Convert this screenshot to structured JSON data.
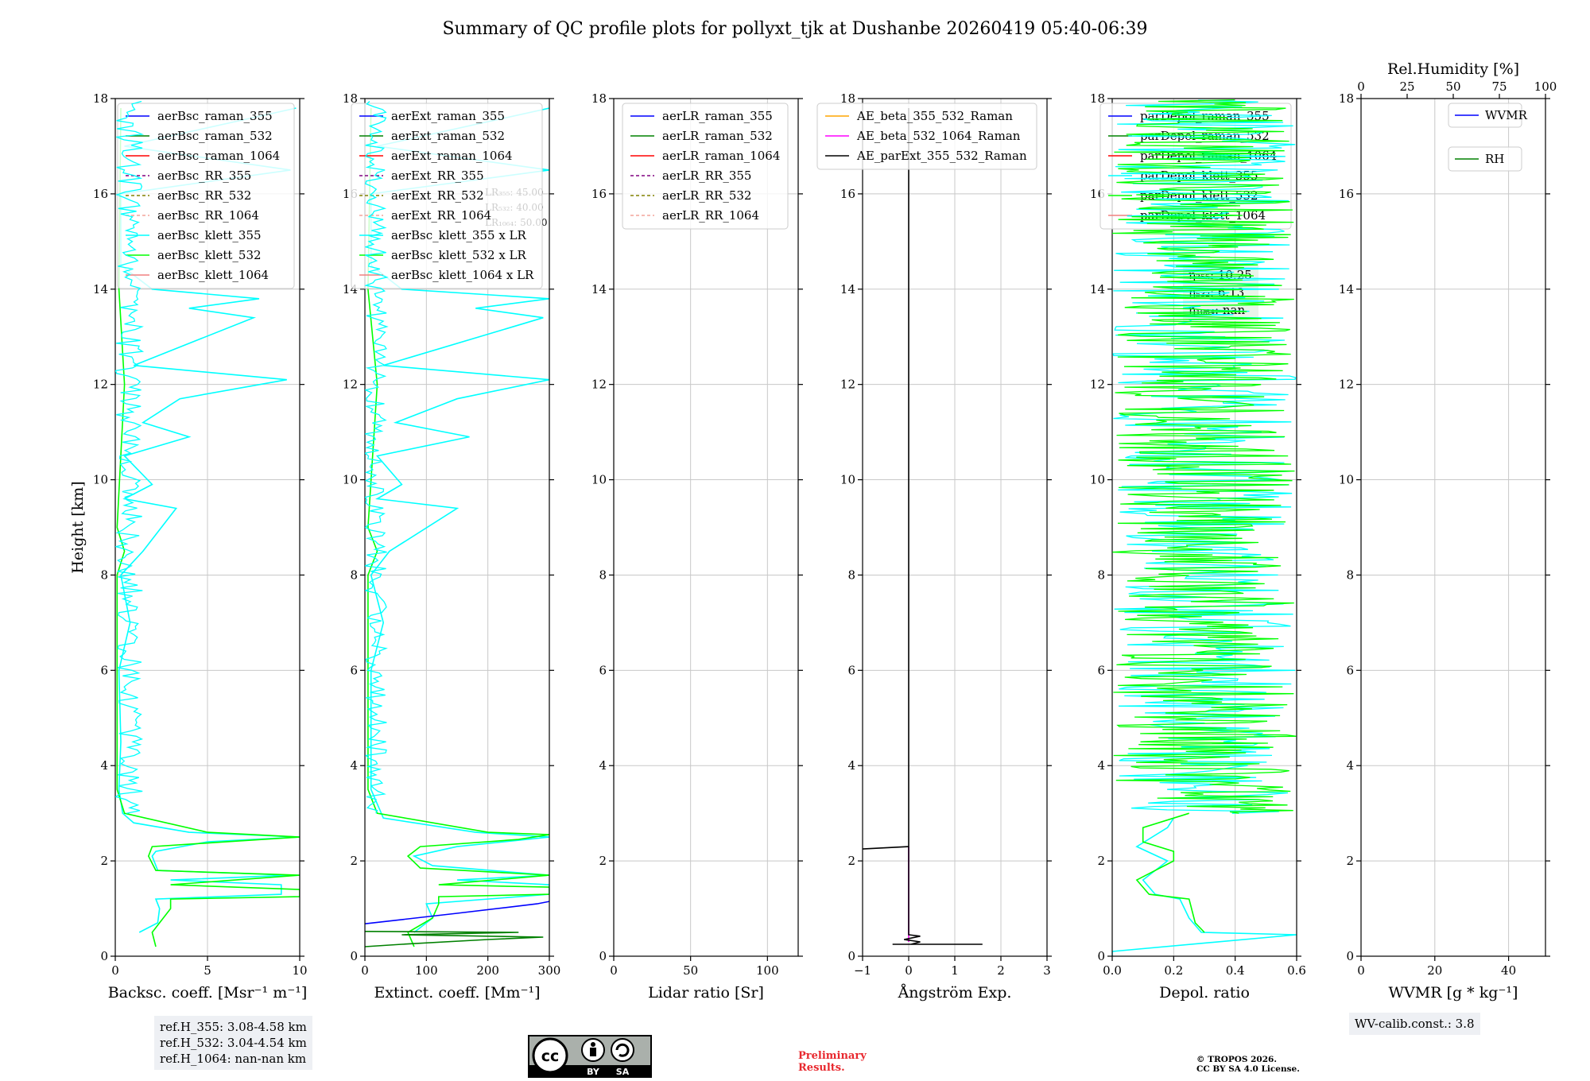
{
  "title": "Summary of QC profile plots for pollyxt_tjk at Dushanbe 20260419 05:40-06:39",
  "chart_data": [
    {
      "type": "line",
      "id": "backscatter",
      "xlabel": "Backsc. coeff. [Msr⁻¹ m⁻¹]",
      "ylabel": "Height [km]",
      "xlim": [
        0,
        10
      ],
      "ylim": [
        0,
        18
      ],
      "xticks": [
        0,
        5,
        10
      ],
      "yticks": [
        0,
        2,
        4,
        6,
        8,
        10,
        12,
        14,
        16,
        18
      ],
      "legend": [
        {
          "name": "aerBsc_raman_355",
          "color": "#0000ff",
          "dash": false
        },
        {
          "name": "aerBsc_raman_532",
          "color": "#008000",
          "dash": false
        },
        {
          "name": "aerBsc_raman_1064",
          "color": "#ff0000",
          "dash": false
        },
        {
          "name": "aerBsc_RR_355",
          "color": "#800080",
          "dash": true
        },
        {
          "name": "aerBsc_RR_532",
          "color": "#808000",
          "dash": true
        },
        {
          "name": "aerBsc_RR_1064",
          "color": "#f4a39a",
          "dash": true
        },
        {
          "name": "aerBsc_klett_355",
          "color": "#00ffff",
          "dash": false
        },
        {
          "name": "aerBsc_klett_532",
          "color": "#00ff00",
          "dash": false
        },
        {
          "name": "aerBsc_klett_1064",
          "color": "#f08080",
          "dash": false
        }
      ],
      "series": [
        {
          "name": "aerBsc_klett_355",
          "color": "#00ffff",
          "points": [
            [
              1.3,
              0.5
            ],
            [
              2.3,
              0.7
            ],
            [
              2.4,
              1.0
            ],
            [
              2.2,
              1.2
            ],
            [
              9.0,
              1.3
            ],
            [
              9.0,
              1.5
            ],
            [
              3.0,
              1.6
            ],
            [
              9.5,
              1.7
            ],
            [
              2.3,
              1.8
            ],
            [
              2.0,
              2.1
            ],
            [
              2.2,
              2.2
            ],
            [
              5.0,
              2.4
            ],
            [
              10,
              2.5
            ],
            [
              4.0,
              2.6
            ],
            [
              1.0,
              2.8
            ],
            [
              0.4,
              3.0
            ],
            [
              0.2,
              3.5
            ],
            [
              0.3,
              4.5
            ],
            [
              0.2,
              6.0
            ],
            [
              0.8,
              7.0
            ],
            [
              0.3,
              8.0
            ],
            [
              1.5,
              8.5
            ],
            [
              3.3,
              9.4
            ],
            [
              0.5,
              9.6
            ],
            [
              2.0,
              9.9
            ],
            [
              0.5,
              10.5
            ],
            [
              4.0,
              10.9
            ],
            [
              1.5,
              11.2
            ],
            [
              3.5,
              11.7
            ],
            [
              9.3,
              12.1
            ],
            [
              1.0,
              12.4
            ],
            [
              7.5,
              13.4
            ],
            [
              4.0,
              13.6
            ],
            [
              7.8,
              13.8
            ],
            [
              2.0,
              14.0
            ],
            [
              0.3,
              14.5
            ],
            [
              0.3,
              16.0
            ],
            [
              9.5,
              16.5
            ],
            [
              0.5,
              17.0
            ],
            [
              9.8,
              17.8
            ]
          ]
        },
        {
          "name": "aerBsc_klett_532",
          "color": "#00ff00",
          "points": [
            [
              2.2,
              0.2
            ],
            [
              2.0,
              0.5
            ],
            [
              2.4,
              0.7
            ],
            [
              3.0,
              1.0
            ],
            [
              3.0,
              1.2
            ],
            [
              10,
              1.25
            ],
            [
              10,
              1.4
            ],
            [
              3.0,
              1.5
            ],
            [
              10,
              1.7
            ],
            [
              2.2,
              1.8
            ],
            [
              1.8,
              2.1
            ],
            [
              2.0,
              2.3
            ],
            [
              6.0,
              2.4
            ],
            [
              10,
              2.5
            ],
            [
              5.0,
              2.6
            ],
            [
              0.5,
              3.0
            ],
            [
              0.1,
              3.5
            ],
            [
              0.1,
              8.0
            ],
            [
              0.5,
              8.5
            ],
            [
              0.1,
              9.0
            ],
            [
              0.5,
              12.0
            ],
            [
              0.2,
              14.0
            ],
            [
              0.3,
              17.8
            ]
          ]
        }
      ]
    },
    {
      "type": "line",
      "id": "extinction",
      "xlabel": "Extinct. coeff. [Mm⁻¹]",
      "xlim": [
        0,
        300
      ],
      "ylim": [
        0,
        18
      ],
      "xticks": [
        0,
        100,
        200,
        300
      ],
      "yticks": [
        0,
        2,
        4,
        6,
        8,
        10,
        12,
        14,
        16,
        18
      ],
      "lr_annotation": [
        "LR₃₅₅: 45.00",
        "LR₅₃₂: 40.00",
        "LR₁₀₆₄: 50.00"
      ],
      "legend": [
        {
          "name": "aerExt_raman_355",
          "color": "#0000ff",
          "dash": false
        },
        {
          "name": "aerExt_raman_532",
          "color": "#008000",
          "dash": false
        },
        {
          "name": "aerExt_raman_1064",
          "color": "#ff0000",
          "dash": false
        },
        {
          "name": "aerExt_RR_355",
          "color": "#800080",
          "dash": true
        },
        {
          "name": "aerExt_RR_532",
          "color": "#808000",
          "dash": true
        },
        {
          "name": "aerExt_RR_1064",
          "color": "#f4a39a",
          "dash": true
        },
        {
          "name": "aerBsc_klett_355 x LR",
          "color": "#00ffff",
          "dash": false
        },
        {
          "name": "aerBsc_klett_532 x LR",
          "color": "#00ff00",
          "dash": false
        },
        {
          "name": "aerBsc_klett_1064 x LR",
          "color": "#f08080",
          "dash": false
        }
      ],
      "series": [
        {
          "name": "aerBsc_klett_355 x LR",
          "color": "#00ffff",
          "points": [
            [
              80,
              0.5
            ],
            [
              110,
              0.8
            ],
            [
              100,
              1.1
            ],
            [
              300,
              1.3
            ],
            [
              300,
              1.5
            ],
            [
              150,
              1.6
            ],
            [
              300,
              1.7
            ],
            [
              110,
              1.9
            ],
            [
              80,
              2.1
            ],
            [
              150,
              2.3
            ],
            [
              300,
              2.5
            ],
            [
              180,
              2.6
            ],
            [
              30,
              2.9
            ],
            [
              10,
              3.5
            ],
            [
              10,
              6.0
            ],
            [
              30,
              7.0
            ],
            [
              10,
              8.0
            ],
            [
              40,
              8.5
            ],
            [
              150,
              9.4
            ],
            [
              20,
              9.6
            ],
            [
              60,
              9.9
            ],
            [
              20,
              10.5
            ],
            [
              170,
              10.9
            ],
            [
              50,
              11.2
            ],
            [
              150,
              11.7
            ],
            [
              300,
              12.1
            ],
            [
              30,
              12.4
            ],
            [
              290,
              13.4
            ],
            [
              180,
              13.6
            ],
            [
              300,
              13.8
            ],
            [
              60,
              14.0
            ],
            [
              10,
              14.5
            ],
            [
              10,
              16.0
            ],
            [
              300,
              16.5
            ],
            [
              20,
              17.0
            ],
            [
              300,
              17.8
            ]
          ]
        },
        {
          "name": "aerBsc_klett_532 x LR",
          "color": "#00ff00",
          "points": [
            [
              80,
              0.2
            ],
            [
              70,
              0.5
            ],
            [
              110,
              0.8
            ],
            [
              120,
              1.1
            ],
            [
              120,
              1.25
            ],
            [
              300,
              1.3
            ],
            [
              300,
              1.45
            ],
            [
              120,
              1.5
            ],
            [
              300,
              1.7
            ],
            [
              90,
              1.85
            ],
            [
              70,
              2.1
            ],
            [
              90,
              2.3
            ],
            [
              250,
              2.45
            ],
            [
              300,
              2.55
            ],
            [
              200,
              2.6
            ],
            [
              20,
              3.0
            ],
            [
              5,
              3.5
            ],
            [
              5,
              8.0
            ],
            [
              20,
              8.5
            ],
            [
              5,
              9.0
            ],
            [
              20,
              12.0
            ],
            [
              5,
              14.0
            ],
            [
              10,
              17.8
            ]
          ]
        },
        {
          "name": "aerExt_raman_355",
          "color": "#0000ff",
          "points": [
            [
              0,
              0.68
            ],
            [
              150,
              0.9
            ],
            [
              280,
              1.1
            ],
            [
              300,
              1.15
            ]
          ]
        },
        {
          "name": "aerExt_raman_532",
          "color": "#008000",
          "points": [
            [
              0,
              0.2
            ],
            [
              60,
              0.25
            ],
            [
              200,
              0.35
            ],
            [
              290,
              0.4
            ],
            [
              60,
              0.45
            ],
            [
              250,
              0.5
            ],
            [
              0,
              0.52
            ]
          ]
        }
      ]
    },
    {
      "type": "line",
      "id": "lidar_ratio",
      "xlabel": "Lidar ratio [Sr]",
      "xlim": [
        0,
        120
      ],
      "ylim": [
        0,
        18
      ],
      "xticks": [
        0,
        50,
        100
      ],
      "yticks": [
        0,
        2,
        4,
        6,
        8,
        10,
        12,
        14,
        16,
        18
      ],
      "legend": [
        {
          "name": "aerLR_raman_355",
          "color": "#0000ff",
          "dash": false
        },
        {
          "name": "aerLR_raman_532",
          "color": "#008000",
          "dash": false
        },
        {
          "name": "aerLR_raman_1064",
          "color": "#ff0000",
          "dash": false
        },
        {
          "name": "aerLR_RR_355",
          "color": "#800080",
          "dash": true
        },
        {
          "name": "aerLR_RR_532",
          "color": "#808000",
          "dash": true
        },
        {
          "name": "aerLR_RR_1064",
          "color": "#f4a39a",
          "dash": true
        }
      ],
      "series": []
    },
    {
      "type": "line",
      "id": "angstrom",
      "xlabel": "Ångström Exp.",
      "xlim": [
        -1,
        3
      ],
      "ylim": [
        0,
        18
      ],
      "xticks": [
        -1,
        0,
        1,
        2,
        3
      ],
      "yticks": [
        0,
        2,
        4,
        6,
        8,
        10,
        12,
        14,
        16,
        18
      ],
      "legend": [
        {
          "name": "AE_beta_355_532_Raman",
          "color": "#ffa500",
          "dash": false
        },
        {
          "name": "AE_beta_532_1064_Raman",
          "color": "#ff00ff",
          "dash": false
        },
        {
          "name": "AE_parExt_355_532_Raman",
          "color": "#000000",
          "dash": false
        }
      ],
      "series": [
        {
          "name": "AE_beta_532_1064_Raman",
          "color": "#ff00ff",
          "points": [
            [
              0,
              0.3
            ],
            [
              0,
              2.3
            ]
          ]
        },
        {
          "name": "AE_parExt_355_532_Raman",
          "color": "#000000",
          "points": [
            [
              -0.35,
              0.25
            ],
            [
              1.6,
              0.25
            ],
            [
              0.05,
              0.25
            ],
            [
              0.25,
              0.3
            ],
            [
              -0.1,
              0.35
            ],
            [
              0.25,
              0.42
            ],
            [
              0,
              0.45
            ],
            [
              0,
              2.3
            ],
            [
              -1,
              2.25
            ],
            [
              -1,
              2.25
            ],
            [
              0,
              2.3
            ],
            [
              0,
              17.8
            ]
          ]
        }
      ]
    },
    {
      "type": "line",
      "id": "depol",
      "xlabel": "Depol. ratio",
      "xlim": [
        0,
        0.6
      ],
      "ylim": [
        0,
        18
      ],
      "xticks": [
        0.0,
        0.2,
        0.4,
        0.6
      ],
      "yticks": [
        0,
        2,
        4,
        6,
        8,
        10,
        12,
        14,
        16,
        18
      ],
      "eta_annotation": [
        "η₃₅₅: 10.25",
        "η₅₃₂: 6.13",
        "η₁₀₆₄: nan"
      ],
      "legend": [
        {
          "name": "parDepol_raman_355",
          "color": "#0000ff",
          "dash": false
        },
        {
          "name": "parDepol_raman_532",
          "color": "#008000",
          "dash": false
        },
        {
          "name": "parDepol_raman_1064",
          "color": "#ff0000",
          "dash": false
        },
        {
          "name": "parDepol_klett_355",
          "color": "#00ffff",
          "dash": false
        },
        {
          "name": "parDepol_klett_532",
          "color": "#00ff00",
          "dash": false
        },
        {
          "name": "parDepol_klett_1064",
          "color": "#f08080",
          "dash": false
        }
      ],
      "series": [
        {
          "name": "parDepol_klett_355",
          "color": "#00ffff",
          "points": [
            [
              0.0,
              0.0
            ],
            [
              0.0,
              0.1
            ],
            [
              0.6,
              0.45
            ],
            [
              0.29,
              0.5
            ],
            [
              0.25,
              0.8
            ],
            [
              0.22,
              1.2
            ],
            [
              0.14,
              1.3
            ],
            [
              0.1,
              1.6
            ],
            [
              0.18,
              2.0
            ],
            [
              0.08,
              2.3
            ],
            [
              0.18,
              2.7
            ],
            [
              0.2,
              2.9
            ]
          ]
        },
        {
          "name": "parDepol_klett_532",
          "color": "#00ff00",
          "points": [
            [
              0.3,
              0.5
            ],
            [
              0.27,
              0.7
            ],
            [
              0.25,
              1.2
            ],
            [
              0.12,
              1.3
            ],
            [
              0.08,
              1.6
            ],
            [
              0.2,
              2.0
            ],
            [
              0.2,
              2.2
            ],
            [
              0.1,
              2.4
            ],
            [
              0.1,
              2.7
            ],
            [
              0.25,
              3.0
            ]
          ]
        }
      ]
    },
    {
      "type": "line",
      "id": "wvmr",
      "xlabel": "WVMR [g * kg⁻¹]",
      "top_xlabel": "Rel.Humidity [%]",
      "xlim": [
        0,
        50
      ],
      "top_xlim": [
        0,
        100
      ],
      "ylim": [
        0,
        18
      ],
      "xticks": [
        0,
        20,
        40
      ],
      "top_xticks": [
        0,
        25,
        50,
        75,
        100
      ],
      "yticks": [
        0,
        2,
        4,
        6,
        8,
        10,
        12,
        14,
        16,
        18
      ],
      "legend": [
        {
          "name": "WVMR",
          "color": "#0000ff",
          "dash": false
        },
        {
          "name": "RH",
          "color": "#008000",
          "dash": false
        }
      ],
      "series": []
    }
  ],
  "info": {
    "refh": [
      "ref.H_355: 3.08-4.58 km",
      "ref.H_532: 3.04-4.54 km",
      "ref.H_1064: nan-nan km"
    ],
    "wv_calib": "WV-calib.const.: 3.8",
    "cc_by": "BY",
    "cc_sa": "SA",
    "preliminary": [
      "Preliminary",
      "Results."
    ],
    "tropos": [
      "© TROPOS 2026.",
      "CC BY SA 4.0 License."
    ]
  }
}
